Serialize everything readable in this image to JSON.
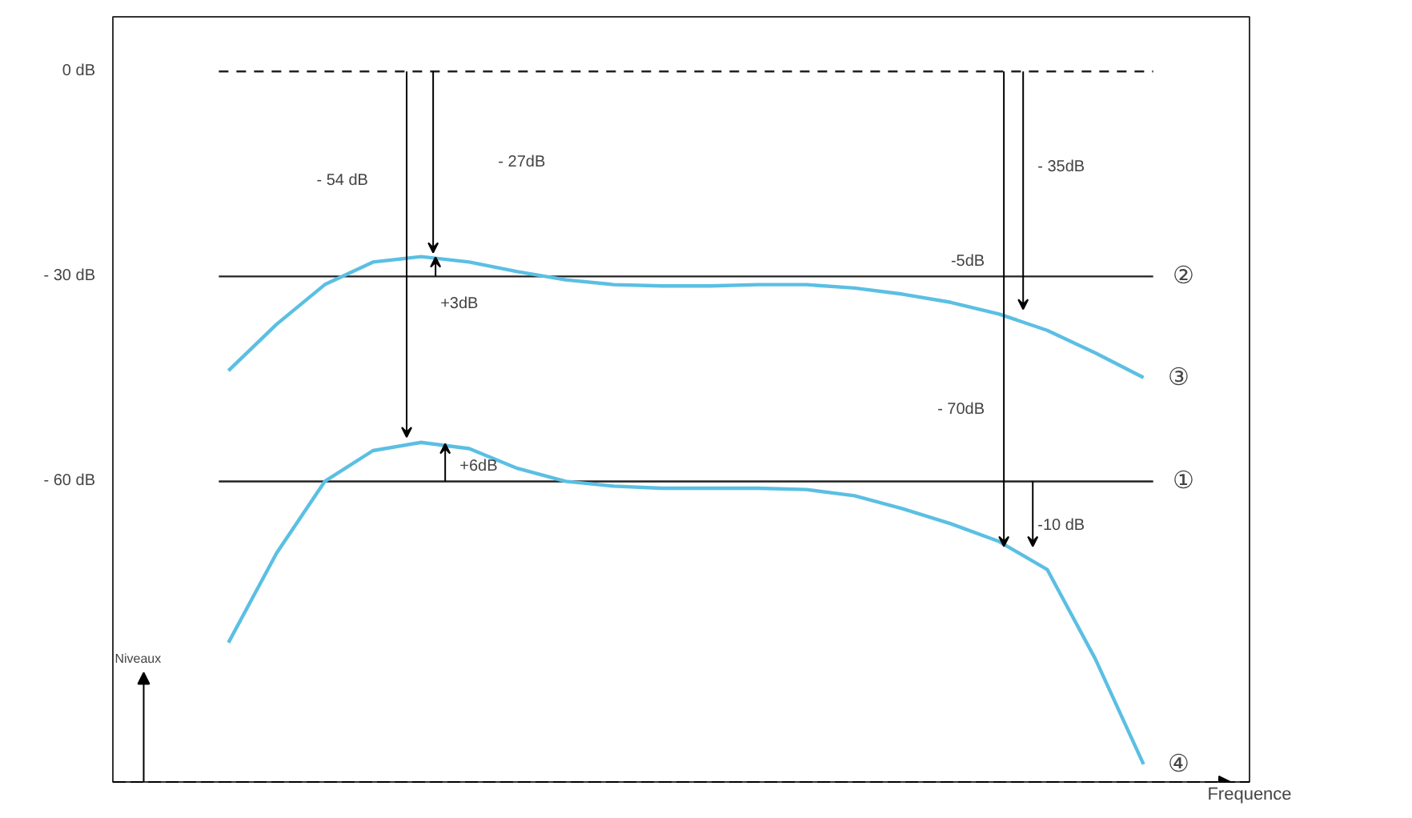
{
  "chart_data": {
    "type": "line",
    "xlabel": "Frequence",
    "ylabel": "Niveaux",
    "categories": [
      null,
      null,
      null,
      null,
      null,
      null,
      null,
      null,
      null,
      null,
      null,
      null,
      null,
      null,
      null,
      null,
      null,
      null,
      null,
      null
    ],
    "series": [
      {
        "name": "③",
        "color": "#5bbfe3",
        "values": [
          -43.8,
          -37,
          -31.2,
          -27.9,
          -27.1,
          -27.9,
          -29.3,
          -30.5,
          -31.2,
          -31.4,
          -31.4,
          -31.2,
          -31.2,
          -31.7,
          -32.6,
          -33.8,
          -35.5,
          -37.9,
          -41.2,
          -44.8
        ]
      },
      {
        "name": "④",
        "color": "#5bbfe3",
        "values": [
          -83.6,
          -70.5,
          -60,
          -55.5,
          -54.3,
          -55.2,
          -58.1,
          -60,
          -60.7,
          -61,
          -61,
          -61,
          -61.2,
          -62.1,
          -64,
          -66.2,
          -68.8,
          -72.9,
          -86,
          -101.4
        ]
      }
    ],
    "ylim": [
      -104,
      8
    ],
    "yticks": [
      {
        "value": 0,
        "label": "0 dB"
      },
      {
        "value": -30,
        "label": "- 30 dB"
      },
      {
        "value": -60,
        "label": "- 60 dB"
      }
    ],
    "ref_lines": [
      {
        "axis": "y",
        "value": 0,
        "label": null,
        "line_style": "dashed",
        "color": "#222222"
      },
      {
        "axis": "y",
        "value": -30,
        "label": "②",
        "line_style": "solid",
        "color": "#222222"
      },
      {
        "axis": "y",
        "value": -60,
        "label": "①",
        "line_style": "solid",
        "color": "#222222"
      }
    ],
    "annotations": [
      "- 27dB",
      "- 54 dB",
      "+3dB",
      "+6dB",
      "- 35dB",
      "-5dB",
      "- 70dB",
      "-10 dB"
    ],
    "grid": false,
    "marker": "none",
    "line_style": "solid"
  }
}
